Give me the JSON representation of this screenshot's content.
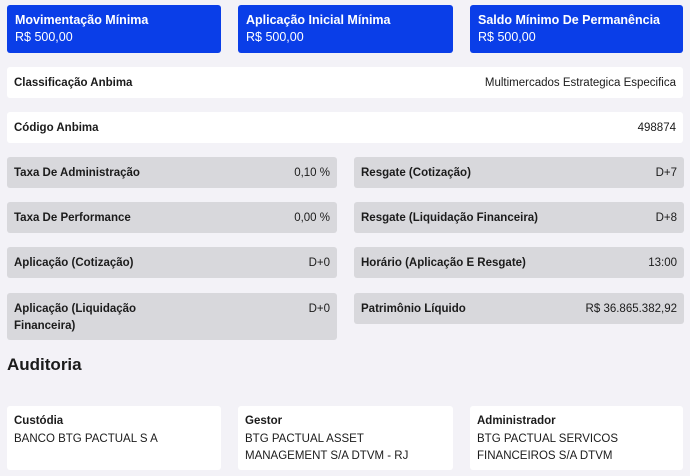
{
  "top_cards": [
    {
      "title": "Movimentação Mínima",
      "value": "R$ 500,00"
    },
    {
      "title": "Aplicação Inicial Mínima",
      "value": "R$ 500,00"
    },
    {
      "title": "Saldo Mínimo De Permanência",
      "value": "R$ 500,00"
    }
  ],
  "classificacao": {
    "label": "Classificação Anbima",
    "value": "Multimercados Estrategica Especifica"
  },
  "codigo": {
    "label": "Código Anbima",
    "value": "498874"
  },
  "left_items": [
    {
      "label": "Taxa De Administração",
      "value": "0,10 %"
    },
    {
      "label": "Taxa De Performance",
      "value": "0,00 %"
    },
    {
      "label": "Aplicação (Cotização)",
      "value": "D+0"
    },
    {
      "label": "Aplicação (Liquidação Financeira)",
      "value": "D+0"
    }
  ],
  "right_items": [
    {
      "label": "Resgate (Cotização)",
      "value": "D+7"
    },
    {
      "label": "Resgate (Liquidação Financeira)",
      "value": "D+8"
    },
    {
      "label": "Horário (Aplicação E Resgate)",
      "value": "13:00"
    },
    {
      "label": "Patrimônio Líquido",
      "value": "R$ 36.865.382,92"
    }
  ],
  "auditoria": {
    "title": "Auditoria",
    "cards": [
      {
        "title": "Custódia",
        "value": "BANCO BTG PACTUAL S A"
      },
      {
        "title": "Gestor",
        "value": "BTG PACTUAL ASSET MANAGEMENT S/A DTVM - RJ"
      },
      {
        "title": "Administrador",
        "value": "BTG PACTUAL SERVICOS FINANCEIROS S/A DTVM"
      }
    ]
  },
  "colors": {
    "accent": "#0a3ee8",
    "background": "#f3f2f7",
    "row_grey": "#d8d8dc"
  }
}
